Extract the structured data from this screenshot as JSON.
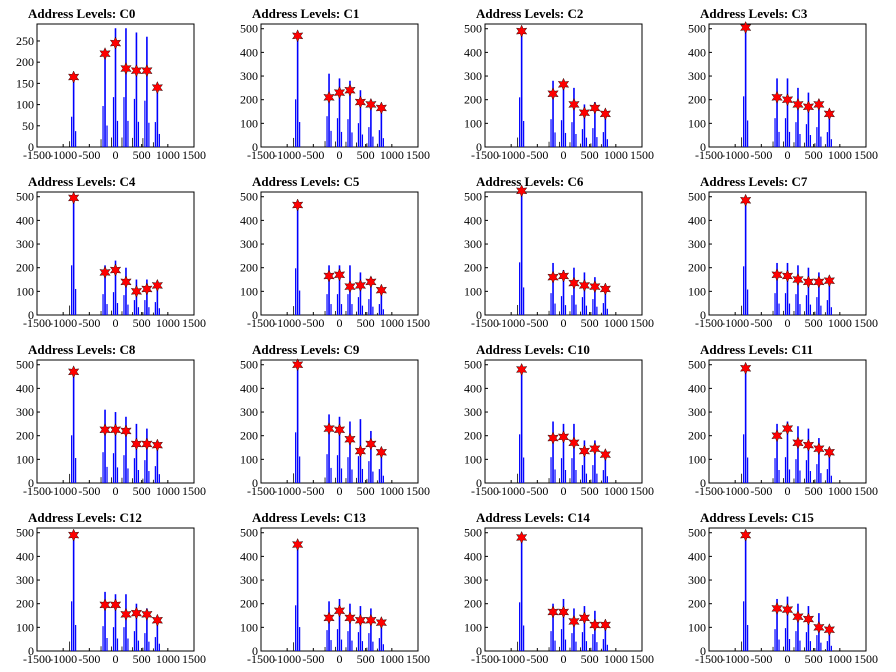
{
  "chart_data": {
    "type": "bar",
    "layout": "4x4 grid",
    "xlim": [
      -1500,
      1500
    ],
    "xticks": [
      -1500,
      -1000,
      -500,
      0,
      500,
      1000,
      1500
    ],
    "xtick_labels": [
      "-1500",
      "-1000",
      "-500",
      "0",
      "500",
      "1000",
      "1500"
    ],
    "bar_color": "#0000ff",
    "marker_color": "#ff0000",
    "spike_x": [
      -800,
      -200,
      0,
      200,
      400,
      600,
      800
    ],
    "panels": [
      {
        "title": "Address Levels: C0",
        "ylim": [
          0,
          290
        ],
        "yticks": [
          0,
          50,
          100,
          150,
          200,
          250
        ],
        "peaks": [
          165,
          220,
          245,
          185,
          180,
          180,
          140
        ],
        "bars": [
          170,
          230,
          280,
          280,
          270,
          260,
          140
        ]
      },
      {
        "title": "Address Levels: C1",
        "ylim": [
          0,
          520
        ],
        "yticks": [
          0,
          100,
          200,
          300,
          400,
          500
        ],
        "peaks": [
          470,
          210,
          230,
          240,
          190,
          180,
          165
        ],
        "bars": [
          480,
          310,
          290,
          280,
          240,
          200,
          170
        ]
      },
      {
        "title": "Address Levels: C2",
        "ylim": [
          0,
          520
        ],
        "yticks": [
          0,
          100,
          200,
          300,
          400,
          500
        ],
        "peaks": [
          490,
          225,
          265,
          180,
          145,
          165,
          140
        ],
        "bars": [
          500,
          280,
          270,
          250,
          180,
          190,
          150
        ]
      },
      {
        "title": "Address Levels: C3",
        "ylim": [
          0,
          520
        ],
        "yticks": [
          0,
          100,
          200,
          300,
          400,
          500
        ],
        "peaks": [
          505,
          210,
          200,
          180,
          170,
          180,
          140
        ],
        "bars": [
          510,
          290,
          290,
          250,
          230,
          200,
          150
        ]
      },
      {
        "title": "Address Levels: C4",
        "ylim": [
          0,
          520
        ],
        "yticks": [
          0,
          100,
          200,
          300,
          400,
          500
        ],
        "peaks": [
          495,
          180,
          190,
          140,
          100,
          110,
          125
        ],
        "bars": [
          500,
          210,
          230,
          200,
          150,
          150,
          130
        ]
      },
      {
        "title": "Address Levels: C5",
        "ylim": [
          0,
          520
        ],
        "yticks": [
          0,
          100,
          200,
          300,
          400,
          500
        ],
        "peaks": [
          465,
          165,
          170,
          120,
          125,
          140,
          105
        ],
        "bars": [
          470,
          210,
          210,
          210,
          180,
          160,
          110
        ]
      },
      {
        "title": "Address Levels: C6",
        "ylim": [
          0,
          520
        ],
        "yticks": [
          0,
          100,
          200,
          300,
          400,
          500
        ],
        "peaks": [
          525,
          160,
          165,
          135,
          125,
          120,
          110
        ],
        "bars": [
          530,
          220,
          190,
          200,
          180,
          160,
          120
        ]
      },
      {
        "title": "Address Levels: C7",
        "ylim": [
          0,
          520
        ],
        "yticks": [
          0,
          100,
          200,
          300,
          400,
          500
        ],
        "peaks": [
          485,
          170,
          165,
          150,
          140,
          140,
          145
        ],
        "bars": [
          490,
          220,
          220,
          210,
          200,
          180,
          150
        ]
      },
      {
        "title": "Address Levels: C8",
        "ylim": [
          0,
          520
        ],
        "yticks": [
          0,
          100,
          200,
          300,
          400,
          500
        ],
        "peaks": [
          470,
          225,
          225,
          220,
          165,
          165,
          160
        ],
        "bars": [
          480,
          310,
          300,
          280,
          250,
          230,
          170
        ]
      },
      {
        "title": "Address Levels: C9",
        "ylim": [
          0,
          520
        ],
        "yticks": [
          0,
          100,
          200,
          300,
          400,
          500
        ],
        "peaks": [
          500,
          230,
          225,
          185,
          135,
          165,
          130
        ],
        "bars": [
          510,
          290,
          280,
          260,
          270,
          220,
          140
        ]
      },
      {
        "title": "Address Levels: C10",
        "ylim": [
          0,
          520
        ],
        "yticks": [
          0,
          100,
          200,
          300,
          400,
          500
        ],
        "peaks": [
          480,
          190,
          195,
          170,
          135,
          145,
          120
        ],
        "bars": [
          490,
          260,
          250,
          250,
          180,
          180,
          130
        ]
      },
      {
        "title": "Address Levels: C11",
        "ylim": [
          0,
          520
        ],
        "yticks": [
          0,
          100,
          200,
          300,
          400,
          500
        ],
        "peaks": [
          485,
          200,
          230,
          170,
          160,
          145,
          130
        ],
        "bars": [
          490,
          250,
          260,
          240,
          230,
          190,
          140
        ]
      },
      {
        "title": "Address Levels: C12",
        "ylim": [
          0,
          520
        ],
        "yticks": [
          0,
          100,
          200,
          300,
          400,
          500
        ],
        "peaks": [
          490,
          195,
          195,
          155,
          160,
          155,
          130
        ],
        "bars": [
          500,
          250,
          240,
          240,
          200,
          180,
          140
        ]
      },
      {
        "title": "Address Levels: C13",
        "ylim": [
          0,
          520
        ],
        "yticks": [
          0,
          100,
          200,
          300,
          400,
          500
        ],
        "peaks": [
          450,
          140,
          170,
          140,
          130,
          130,
          120
        ],
        "bars": [
          460,
          210,
          220,
          200,
          190,
          180,
          130
        ]
      },
      {
        "title": "Address Levels: C14",
        "ylim": [
          0,
          520
        ],
        "yticks": [
          0,
          100,
          200,
          300,
          400,
          500
        ],
        "peaks": [
          480,
          165,
          165,
          125,
          140,
          110,
          110
        ],
        "bars": [
          490,
          200,
          220,
          180,
          190,
          170,
          120
        ]
      },
      {
        "title": "Address Levels: C15",
        "ylim": [
          0,
          520
        ],
        "yticks": [
          0,
          100,
          200,
          300,
          400,
          500
        ],
        "peaks": [
          490,
          180,
          175,
          145,
          135,
          100,
          90
        ],
        "bars": [
          500,
          220,
          230,
          200,
          190,
          160,
          100
        ]
      }
    ]
  }
}
